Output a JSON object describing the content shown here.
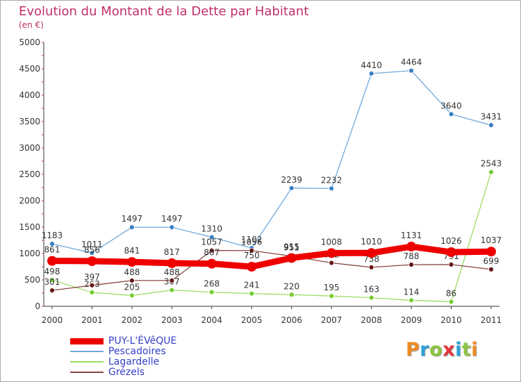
{
  "title": "Evolution du Montant de la Dette par Habitant",
  "subtitle": "(en €)",
  "logo": {
    "text": "Proxiti",
    "colors": [
      "#f08a1f",
      "#29a3d8",
      "#8bc43f",
      "#e0343a",
      "#29a3d8",
      "#8bc43f",
      "#f08a1f"
    ]
  },
  "chart_data": {
    "type": "line",
    "title": "Evolution du Montant de la Dette par Habitant",
    "subtitle": "(en €)",
    "x": [
      "2000",
      "2001",
      "2002",
      "2003",
      "2004",
      "2005",
      "2006",
      "2007",
      "2008",
      "2009",
      "2010",
      "2011"
    ],
    "yticks": [
      "0",
      "500",
      "1000",
      "1500",
      "2000",
      "2500",
      "3000",
      "3500",
      "4000",
      "4500",
      "5000"
    ],
    "ylim": [
      0,
      5000
    ],
    "grid": false,
    "legend_position": "bottom-left",
    "series": [
      {
        "name": "PUY-L'ÉVêQUE",
        "color": "#ee0000",
        "emphasis": true,
        "values": [
          861,
          856,
          841,
          817,
          807,
          750,
          915,
          1008,
          1010,
          1131,
          1026,
          1037
        ],
        "labels": [
          "861",
          "856",
          "841",
          "817",
          "807",
          "750",
          "915",
          "1008",
          "1010",
          "1131",
          "1026",
          "1037"
        ]
      },
      {
        "name": "Pescadoires",
        "color": "#6fa8dc",
        "marker": "#3a7fc4",
        "values": [
          1183,
          1011,
          1497,
          1497,
          1310,
          1102,
          2239,
          2232,
          4410,
          4464,
          3640,
          3431
        ],
        "labels": [
          "1183",
          "1011",
          "1497",
          "1497",
          "1310",
          "1102",
          "2239",
          "2232",
          "4410",
          "4464",
          "3640",
          "3431"
        ]
      },
      {
        "name": "Lagardelle",
        "color": "#99dd66",
        "marker": "#77cc33",
        "values": [
          498,
          263,
          205,
          307,
          268,
          241,
          220,
          195,
          163,
          114,
          86,
          2543
        ],
        "labels": [
          "498",
          "263",
          "205",
          "307",
          "268",
          "241",
          "220",
          "195",
          "163",
          "114",
          "86",
          "2543"
        ]
      },
      {
        "name": "Grézels",
        "color": "#884444",
        "marker": "#661818",
        "values": [
          301,
          397,
          488,
          488,
          1057,
          1056,
          951,
          822,
          738,
          788,
          791,
          699
        ],
        "labels": [
          "301",
          "397",
          "488",
          "488",
          "1057",
          "1056",
          "951",
          "822",
          "738",
          "788",
          "791",
          "699"
        ]
      }
    ]
  }
}
